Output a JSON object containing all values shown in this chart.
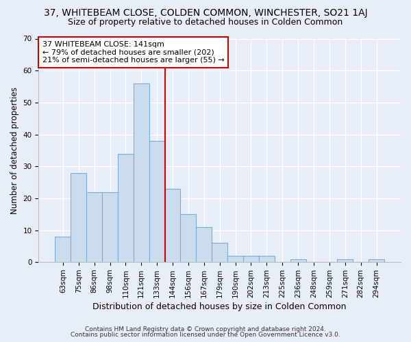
{
  "title": "37, WHITEBEAM CLOSE, COLDEN COMMON, WINCHESTER, SO21 1AJ",
  "subtitle": "Size of property relative to detached houses in Colden Common",
  "xlabel": "Distribution of detached houses by size in Colden Common",
  "ylabel": "Number of detached properties",
  "categories": [
    "63sqm",
    "75sqm",
    "86sqm",
    "98sqm",
    "110sqm",
    "121sqm",
    "133sqm",
    "144sqm",
    "156sqm",
    "167sqm",
    "179sqm",
    "190sqm",
    "202sqm",
    "213sqm",
    "225sqm",
    "236sqm",
    "248sqm",
    "259sqm",
    "271sqm",
    "282sqm",
    "294sqm"
  ],
  "values": [
    8,
    28,
    22,
    22,
    34,
    56,
    38,
    23,
    15,
    11,
    6,
    2,
    2,
    2,
    0,
    1,
    0,
    0,
    1,
    0,
    1
  ],
  "bar_color": "#ccdcef",
  "bar_edge_color": "#7aadd4",
  "red_line_x": 6.5,
  "annotation_line1": "37 WHITEBEAM CLOSE: 141sqm",
  "annotation_line2": "← 79% of detached houses are smaller (202)",
  "annotation_line3": "21% of semi-detached houses are larger (55) →",
  "annotation_box_color": "#ffffff",
  "annotation_box_edge": "#cc0000",
  "ylim": [
    0,
    70
  ],
  "yticks": [
    0,
    10,
    20,
    30,
    40,
    50,
    60,
    70
  ],
  "footer1": "Contains HM Land Registry data © Crown copyright and database right 2024.",
  "footer2": "Contains public sector information licensed under the Open Government Licence v3.0.",
  "background_color": "#e8eef8",
  "plot_background": "#e8eef8",
  "title_fontsize": 10,
  "subtitle_fontsize": 9,
  "tick_fontsize": 7.5,
  "xlabel_fontsize": 9,
  "ylabel_fontsize": 8.5,
  "annotation_fontsize": 8,
  "footer_fontsize": 6.5
}
